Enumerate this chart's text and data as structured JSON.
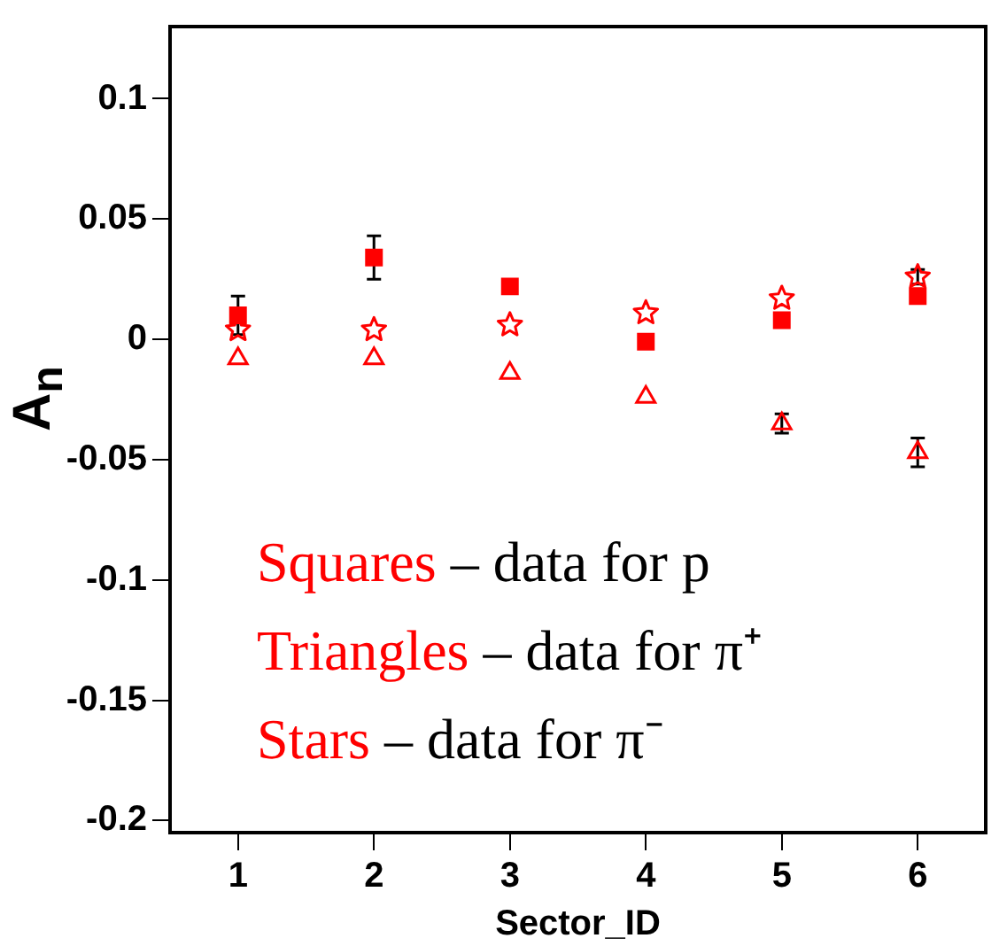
{
  "chart_data": {
    "type": "scatter",
    "xlabel": "Sector_ID",
    "ylabel": "A$_{n}$",
    "x": [
      1,
      2,
      3,
      4,
      5,
      6
    ],
    "xlim": [
      0.5,
      6.5
    ],
    "xticks": [
      1,
      2,
      3,
      4,
      5,
      6
    ],
    "ylim": [
      -0.205,
      0.13
    ],
    "yticks": [
      -0.2,
      -0.15,
      -0.1,
      -0.05,
      0,
      0.05,
      0.1
    ],
    "grid": false,
    "legend": false,
    "series": [
      {
        "color": "#ff0000",
        "marker": "square",
        "values": [
          0.01,
          0.034,
          0.022,
          -0.001,
          0.008,
          0.018
        ],
        "errors": [
          0.008,
          0.009,
          null,
          null,
          null,
          null
        ]
      },
      {
        "color": "#ff0000",
        "marker": "triangle",
        "values": [
          -0.008,
          -0.008,
          -0.014,
          -0.024,
          -0.035,
          -0.047
        ],
        "errors": [
          null,
          null,
          null,
          null,
          0.004,
          0.006
        ]
      },
      {
        "color": "#ff0000",
        "marker": "star",
        "values": [
          0.004,
          0.004,
          0.006,
          0.011,
          0.017,
          0.026
        ],
        "errors": [
          null,
          null,
          null,
          null,
          null,
          0.003
        ]
      }
    ],
    "annotations": [
      "Squares – data for p",
      "Triangles – data for π⁺",
      "Stars – data for π⁻"
    ]
  }
}
